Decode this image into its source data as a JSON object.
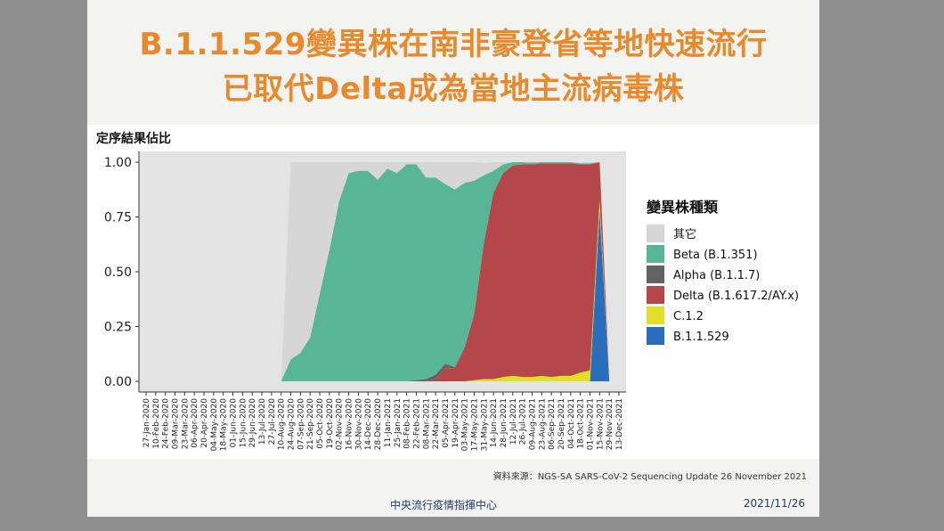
{
  "slide": {
    "title_line1": "B.1.1.529變異株在南非豪登省等地快速流行",
    "title_line2": "已取代Delta成為當地主流病毒株",
    "source": "資料來源：NGS-SA SARS-CoV-2 Sequencing Update 26 November 2021",
    "org": "中央流行疫情指揮中心",
    "date": "2021/11/26"
  },
  "chart_data": {
    "type": "area",
    "stacked": true,
    "ylabel": "定序結果佔比",
    "xlabel": "",
    "ylim": [
      0,
      1
    ],
    "y_ticks": [
      "0.00",
      "0.25",
      "0.50",
      "0.75",
      "1.00"
    ],
    "y_tick_values": [
      0,
      0.25,
      0.5,
      0.75,
      1
    ],
    "background_gray": true,
    "legend_title": "變異株種類",
    "legend_position": "right",
    "x": [
      "27-Jan-2020",
      "10-Feb-2020",
      "24-Feb-2020",
      "09-Mar-2020",
      "23-Mar-2020",
      "06-Apr-2020",
      "20-Apr-2020",
      "04-May-2020",
      "18-May-2020",
      "01-Jun-2020",
      "15-Jun-2020",
      "29-Jun-2020",
      "13-Jul-2020",
      "27-Jul-2020",
      "10-Aug-2020",
      "24-Aug-2020",
      "07-Sep-2020",
      "21-Sep-2020",
      "05-Oct-2020",
      "19-Oct-2020",
      "02-Nov-2020",
      "16-Nov-2020",
      "30-Nov-2020",
      "14-Dec-2020",
      "28-Dec-2020",
      "11-Jan-2021",
      "25-Jan-2021",
      "08-Feb-2021",
      "22-Feb-2021",
      "08-Mar-2021",
      "22-Mar-2021",
      "05-Apr-2021",
      "19-Apr-2021",
      "03-May-2021",
      "17-May-2021",
      "31-May-2021",
      "14-Jun-2021",
      "28-Jun-2021",
      "12-Jul-2021",
      "26-Jul-2021",
      "09-Aug-2021",
      "23-Aug-2021",
      "06-Sep-2021",
      "20-Sep-2021",
      "04-Oct-2021",
      "18-Oct-2021",
      "01-Nov-2021",
      "15-Nov-2021",
      "29-Nov-2021",
      "13-Dec-2021"
    ],
    "series": [
      {
        "name": "B.1.1.529",
        "color": "#2a6ebb",
        "values": [
          0,
          0,
          0,
          0,
          0,
          0,
          0,
          0,
          0,
          0,
          0,
          0,
          0,
          0,
          0,
          0,
          0,
          0,
          0,
          0,
          0,
          0,
          0,
          0,
          0,
          0,
          0,
          0,
          0,
          0,
          0,
          0,
          0,
          0,
          0,
          0,
          0,
          0,
          0,
          0,
          0,
          0,
          0,
          0,
          0,
          0,
          0,
          0.78,
          0,
          0
        ]
      },
      {
        "name": "C.1.2",
        "color": "#e2df2a",
        "values": [
          0,
          0,
          0,
          0,
          0,
          0,
          0,
          0,
          0,
          0,
          0,
          0,
          0,
          0,
          0,
          0,
          0,
          0,
          0,
          0,
          0,
          0,
          0,
          0,
          0,
          0,
          0,
          0,
          0,
          0,
          0,
          0,
          0,
          0,
          0.005,
          0.01,
          0.01,
          0.02,
          0.025,
          0.02,
          0.02,
          0.025,
          0.02,
          0.025,
          0.025,
          0.04,
          0.05,
          0.05,
          0,
          0
        ]
      },
      {
        "name": "Delta (B.1.617.2/AY.x)",
        "color": "#b5474a",
        "values": [
          0,
          0,
          0,
          0,
          0,
          0,
          0,
          0,
          0,
          0,
          0,
          0,
          0,
          0,
          0,
          0,
          0,
          0,
          0,
          0,
          0,
          0,
          0,
          0,
          0,
          0,
          0,
          0,
          0,
          0,
          0.01,
          0.06,
          0.06,
          0.15,
          0.3,
          0.62,
          0.85,
          0.93,
          0.96,
          0.97,
          0.97,
          0.97,
          0.975,
          0.97,
          0.97,
          0.95,
          0.94,
          0.17,
          0,
          0
        ]
      },
      {
        "name": "Alpha (B.1.1.7)",
        "color": "#636363",
        "values": [
          0,
          0,
          0,
          0,
          0,
          0,
          0,
          0,
          0,
          0,
          0,
          0,
          0,
          0,
          0,
          0,
          0,
          0,
          0,
          0,
          0,
          0,
          0,
          0,
          0,
          0,
          0,
          0,
          0.005,
          0.01,
          0.02,
          0.02,
          0.005,
          0.005,
          0,
          0,
          0,
          0,
          0,
          0,
          0,
          0,
          0,
          0,
          0,
          0,
          0,
          0,
          0,
          0
        ]
      },
      {
        "name": "Beta (B.1.351)",
        "color": "#58b595",
        "values": [
          0,
          0,
          0,
          0,
          0,
          0,
          0,
          0,
          0,
          0,
          0,
          0,
          0,
          0,
          0,
          0.1,
          0.13,
          0.2,
          0.4,
          0.6,
          0.82,
          0.95,
          0.96,
          0.96,
          0.92,
          0.97,
          0.95,
          0.99,
          0.985,
          0.92,
          0.9,
          0.82,
          0.81,
          0.75,
          0.61,
          0.31,
          0.1,
          0.04,
          0.015,
          0.01,
          0.008,
          0.005,
          0.005,
          0.005,
          0.005,
          0.005,
          0.005,
          0,
          0,
          0
        ]
      },
      {
        "name": "其它",
        "color": "#d6d6d6",
        "values": [
          0,
          0,
          0,
          0,
          0,
          0,
          0,
          0,
          0,
          0,
          0,
          0,
          0,
          0,
          0,
          0.9,
          0.87,
          0.8,
          0.6,
          0.4,
          0.18,
          0.05,
          0.04,
          0.04,
          0.08,
          0.03,
          0.05,
          0.01,
          0.01,
          0.07,
          0.07,
          0.1,
          0.125,
          0.095,
          0.085,
          0.055,
          0.04,
          0.01,
          0,
          0,
          0.002,
          0,
          0,
          0,
          0,
          0.005,
          0.005,
          0,
          0,
          0
        ]
      }
    ],
    "legend_order": [
      "其它",
      "Beta (B.1.351)",
      "Alpha (B.1.1.7)",
      "Delta (B.1.617.2/AY.x)",
      "C.1.2",
      "B.1.1.529"
    ]
  }
}
